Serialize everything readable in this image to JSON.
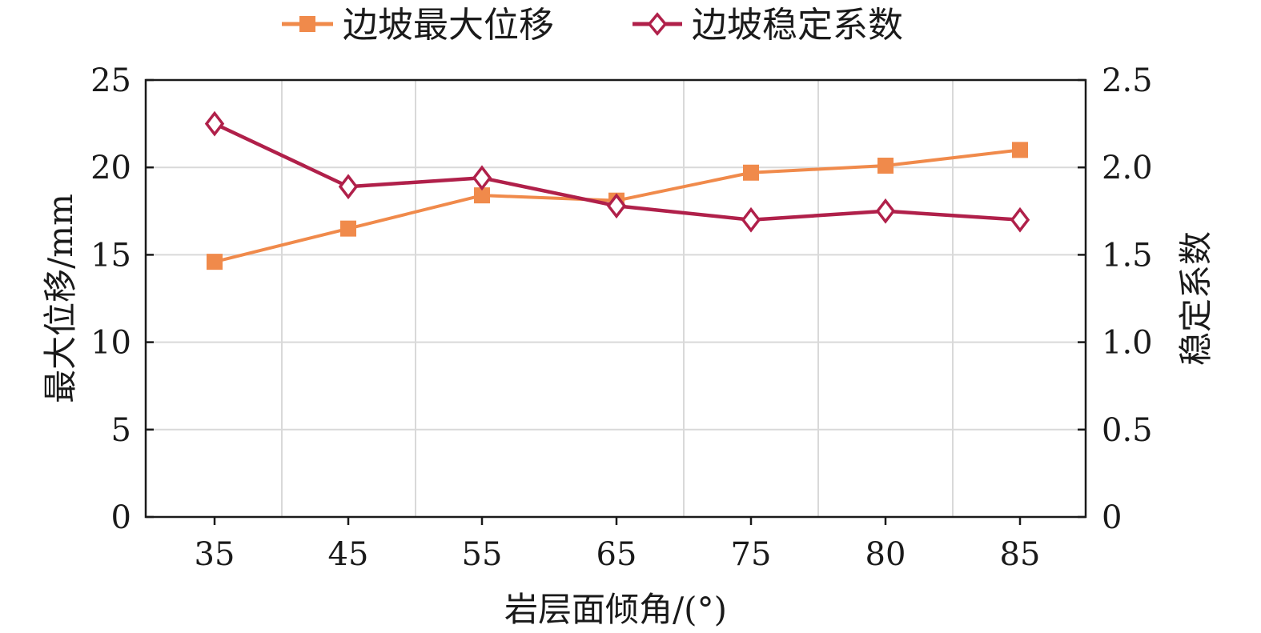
{
  "chart_data": {
    "type": "line",
    "xlabel": "岩层面倾角/(°)",
    "ylabel_left": "最大位移/mm",
    "ylabel_right": "稳定系数",
    "categories": [
      "35",
      "45",
      "55",
      "65",
      "75",
      "80",
      "85"
    ],
    "y_left": {
      "ylim": [
        0,
        25
      ],
      "ticks": [
        "0",
        "5",
        "10",
        "15",
        "20",
        "25"
      ]
    },
    "y_right": {
      "ylim": [
        0,
        2.5
      ],
      "ticks": [
        "0",
        "0.5",
        "1.0",
        "1.5",
        "2.0",
        "2.5"
      ]
    },
    "grid": true,
    "legend_position": "top-center",
    "series": [
      {
        "name": "边坡最大位移",
        "axis": "left",
        "marker": "square",
        "color": "#f08a4b",
        "values": [
          14.6,
          16.5,
          18.4,
          18.1,
          19.7,
          20.1,
          21.0
        ]
      },
      {
        "name": "边坡稳定系数",
        "axis": "right",
        "marker": "diamond",
        "color": "#b0204a",
        "values": [
          2.25,
          1.89,
          1.94,
          1.78,
          1.7,
          1.75,
          1.7
        ]
      }
    ]
  }
}
